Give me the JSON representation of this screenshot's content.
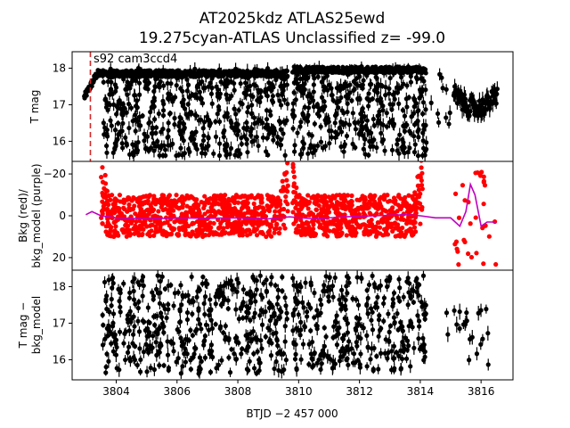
{
  "chart_data": {
    "type": "scatter",
    "title_line1": "AT2025kdz  ATLAS25ewd",
    "title_line2": "19.275cyan-ATLAS Unclassified z= -99.0",
    "xlabel": "BTJD −2 457 000",
    "xlim": [
      3802.55,
      3817.05
    ],
    "xticks": [
      "3804",
      "3806",
      "3808",
      "3810",
      "3812",
      "3814",
      "3816"
    ],
    "annotation": "s92 cam3ccd4",
    "marker_x": 3803.15,
    "colors": {
      "points": "#000000",
      "bkg": "#ff0000",
      "bkg_model": "#bf00bf",
      "marker": "#d62728"
    },
    "panels": [
      {
        "id": "tmag",
        "ylabel": "T mag",
        "ylim": [
          18.45,
          15.45
        ],
        "yticks": [
          "16",
          "17",
          "18"
        ],
        "segments": [
          {
            "x0": 3802.95,
            "x1": 3803.5,
            "lo": 17.2,
            "hi": 17.85,
            "density": 0.9,
            "kind": "dip"
          },
          {
            "x0": 3803.55,
            "x1": 3809.65,
            "lo": 15.6,
            "hi": 18.0,
            "baseline": 17.85,
            "kind": "band"
          },
          {
            "x0": 3809.8,
            "x1": 3814.2,
            "lo": 15.6,
            "hi": 18.05,
            "baseline": 17.95,
            "kind": "band"
          },
          {
            "x0": 3814.3,
            "x1": 3815.0,
            "lo": 16.3,
            "hi": 17.9,
            "kind": "sparse"
          },
          {
            "x0": 3815.1,
            "x1": 3816.55,
            "lo": 16.4,
            "hi": 17.5,
            "kind": "ramp"
          }
        ]
      },
      {
        "id": "bkg",
        "ylabel": "Bkg (red)/",
        "ylabel2": "bkg_model (purple)",
        "ylim": [
          -26,
          26
        ],
        "yticks": [
          "20",
          "0",
          "−20"
        ],
        "segments": [
          {
            "x0": 3803.5,
            "x1": 3809.65,
            "center": 0,
            "spread": 10,
            "kind": "band"
          },
          {
            "x0": 3809.8,
            "x1": 3814.1,
            "center": 0,
            "spread": 10,
            "kind": "band"
          },
          {
            "x0": 3815.0,
            "x1": 3816.5,
            "lo": -22,
            "hi": 24,
            "kind": "sparse"
          }
        ],
        "model_points": [
          [
            3803.0,
            -0.5
          ],
          [
            3803.2,
            -2
          ],
          [
            3803.5,
            0
          ],
          [
            3804.0,
            1
          ],
          [
            3805.0,
            1.5
          ],
          [
            3806.0,
            1
          ],
          [
            3807.0,
            1.2
          ],
          [
            3808.0,
            1
          ],
          [
            3809.0,
            1.5
          ],
          [
            3809.7,
            0.5
          ],
          [
            3810.5,
            1.5
          ],
          [
            3811.5,
            0.5
          ],
          [
            3812.5,
            0
          ],
          [
            3813.5,
            -0.5
          ],
          [
            3814.0,
            0
          ],
          [
            3814.5,
            1
          ],
          [
            3815.0,
            1
          ],
          [
            3815.3,
            5
          ],
          [
            3815.5,
            -2
          ],
          [
            3815.65,
            -15
          ],
          [
            3815.8,
            -10
          ],
          [
            3816.0,
            5
          ],
          [
            3816.2,
            3
          ],
          [
            3816.5,
            3
          ]
        ]
      },
      {
        "id": "diff",
        "ylabel": "T mag −",
        "ylabel2": "bkg_model",
        "ylim": [
          18.45,
          15.45
        ],
        "yticks": [
          "16",
          "17",
          "18"
        ],
        "segments": [
          {
            "x0": 3803.55,
            "x1": 3809.65,
            "lo": 15.6,
            "hi": 18.3,
            "kind": "band"
          },
          {
            "x0": 3809.8,
            "x1": 3814.2,
            "lo": 15.7,
            "hi": 18.3,
            "kind": "band"
          },
          {
            "x0": 3814.8,
            "x1": 3816.4,
            "lo": 15.8,
            "hi": 17.4,
            "kind": "sparse"
          }
        ]
      }
    ]
  }
}
